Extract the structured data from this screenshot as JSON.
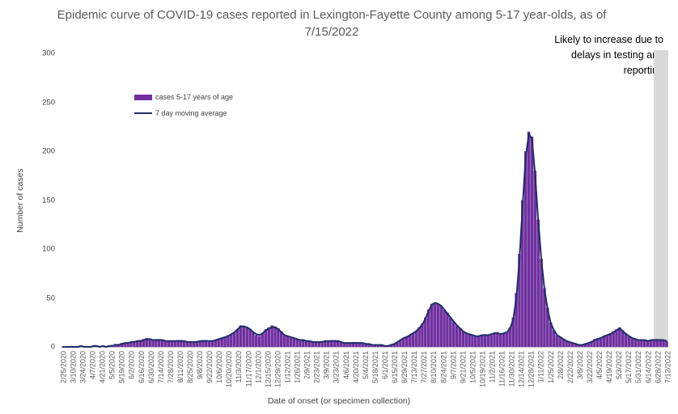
{
  "chart_data": {
    "type": "bar",
    "title": "Epidemic curve of COVID-19 cases reported in Lexington-Fayette County among 5-17 year-olds, as of 7/15/2022",
    "annotation": "Likely to increase due to delays in testing and reporting",
    "xlabel": "Date of onset (or specimen collection)",
    "ylabel": "Number of cases",
    "ylim": [
      0,
      300
    ],
    "yticks": [
      0,
      50,
      100,
      150,
      200,
      250,
      300
    ],
    "grid": false,
    "legend_position": "top-left",
    "series": [
      {
        "name": "cases 5-17 years of age",
        "kind": "bar",
        "color": "#7030a0"
      },
      {
        "name": "7 day moving average",
        "kind": "line",
        "color": "#1f2d6b"
      }
    ],
    "xtick_labels": [
      "2/25/2020",
      "3/10/2020",
      "3/24/2020",
      "4/7/2020",
      "4/21/2020",
      "5/5/2020",
      "5/19/2020",
      "6/2/2020",
      "6/16/2020",
      "6/30/2020",
      "7/14/2020",
      "7/28/2020",
      "8/11/2020",
      "8/25/2020",
      "9/8/2020",
      "9/22/2020",
      "10/6/2020",
      "10/20/2020",
      "11/3/2020",
      "11/17/2020",
      "12/1/2020",
      "12/15/2020",
      "12/29/2020",
      "1/12/2021",
      "1/26/2021",
      "2/9/2021",
      "2/23/2021",
      "3/9/2021",
      "3/23/2021",
      "4/6/2021",
      "4/20/2021",
      "5/4/2021",
      "5/18/2021",
      "6/1/2021",
      "6/15/2021",
      "6/29/2021",
      "7/13/2021",
      "7/27/2021",
      "8/10/2021",
      "8/24/2021",
      "9/7/2021",
      "9/21/2021",
      "10/5/2021",
      "10/19/2021",
      "11/2/2021",
      "11/16/2021",
      "11/30/2021",
      "12/14/2021",
      "12/28/2021",
      "1/11/2022",
      "1/25/2022",
      "2/8/2022",
      "2/22/2022",
      "3/8/2022",
      "3/22/2022",
      "4/5/2022",
      "4/19/2022",
      "5/3/2022",
      "5/17/2022",
      "5/31/2022",
      "6/14/2022",
      "6/28/2022",
      "7/12/2022"
    ],
    "weekly_values": [
      0,
      0,
      0,
      1,
      0,
      1,
      1,
      0,
      0,
      0,
      1,
      1,
      0,
      1,
      0,
      1,
      2,
      3,
      3,
      4,
      4,
      4,
      5,
      6,
      6,
      7,
      8,
      9,
      8,
      7,
      8,
      8,
      7,
      6,
      6,
      6,
      6,
      7,
      7,
      6,
      5,
      5,
      5,
      6,
      6,
      7,
      7,
      6,
      6,
      7,
      8,
      9,
      10,
      12,
      13,
      15,
      18,
      22,
      21,
      20,
      18,
      15,
      12,
      11,
      14,
      18,
      20,
      22,
      21,
      19,
      16,
      12,
      11,
      10,
      9,
      8,
      7,
      7,
      6,
      6,
      5,
      5,
      5,
      6,
      6,
      6,
      7,
      7,
      6,
      5,
      4,
      4,
      4,
      5,
      5,
      4,
      4,
      3,
      3,
      2,
      2,
      2,
      2,
      1,
      1,
      2,
      3,
      5,
      7,
      9,
      11,
      12,
      14,
      16,
      20,
      24,
      30,
      38,
      44,
      45,
      44,
      42,
      38,
      35,
      30,
      26,
      22,
      19,
      16,
      14,
      13,
      12,
      11,
      11,
      12,
      13,
      12,
      13,
      14,
      15,
      13,
      14,
      15,
      20,
      30,
      55,
      95,
      150,
      200,
      220,
      215,
      180,
      130,
      90,
      60,
      40,
      25,
      17,
      12,
      10,
      8,
      6,
      5,
      4,
      3,
      2,
      2,
      3,
      4,
      6,
      8,
      9,
      10,
      11,
      12,
      14,
      16,
      18,
      20,
      17,
      14,
      11,
      9,
      8,
      7,
      7,
      7,
      6,
      7,
      8,
      8,
      7,
      7,
      6
    ],
    "moving_average_weekly": [
      0,
      0,
      0,
      0,
      0,
      0,
      1,
      0,
      0,
      0,
      1,
      1,
      0,
      1,
      0,
      1,
      1,
      2,
      2,
      3,
      4,
      4,
      5,
      5,
      6,
      6,
      7,
      8,
      8,
      7,
      7,
      7,
      7,
      6,
      6,
      6,
      6,
      6,
      6,
      6,
      5,
      5,
      5,
      5,
      6,
      6,
      6,
      6,
      6,
      7,
      8,
      9,
      10,
      11,
      13,
      15,
      18,
      21,
      21,
      20,
      18,
      15,
      13,
      12,
      14,
      17,
      19,
      20,
      20,
      18,
      15,
      12,
      11,
      10,
      9,
      8,
      7,
      7,
      6,
      6,
      5,
      5,
      5,
      5,
      6,
      6,
      6,
      6,
      6,
      5,
      4,
      4,
      4,
      4,
      4,
      4,
      4,
      3,
      3,
      2,
      2,
      2,
      2,
      1,
      1,
      2,
      3,
      5,
      7,
      9,
      10,
      12,
      14,
      16,
      19,
      23,
      29,
      37,
      43,
      45,
      44,
      42,
      38,
      34,
      30,
      26,
      22,
      19,
      16,
      14,
      13,
      12,
      11,
      11,
      12,
      12,
      12,
      13,
      14,
      14,
      13,
      14,
      15,
      19,
      28,
      50,
      90,
      145,
      195,
      218,
      212,
      175,
      128,
      88,
      58,
      38,
      24,
      17,
      12,
      10,
      8,
      6,
      5,
      4,
      3,
      2,
      2,
      3,
      4,
      5,
      7,
      8,
      9,
      11,
      12,
      13,
      15,
      17,
      19,
      16,
      13,
      11,
      9,
      8,
      7,
      7,
      7,
      6,
      7,
      7,
      7,
      7,
      7,
      6
    ]
  }
}
